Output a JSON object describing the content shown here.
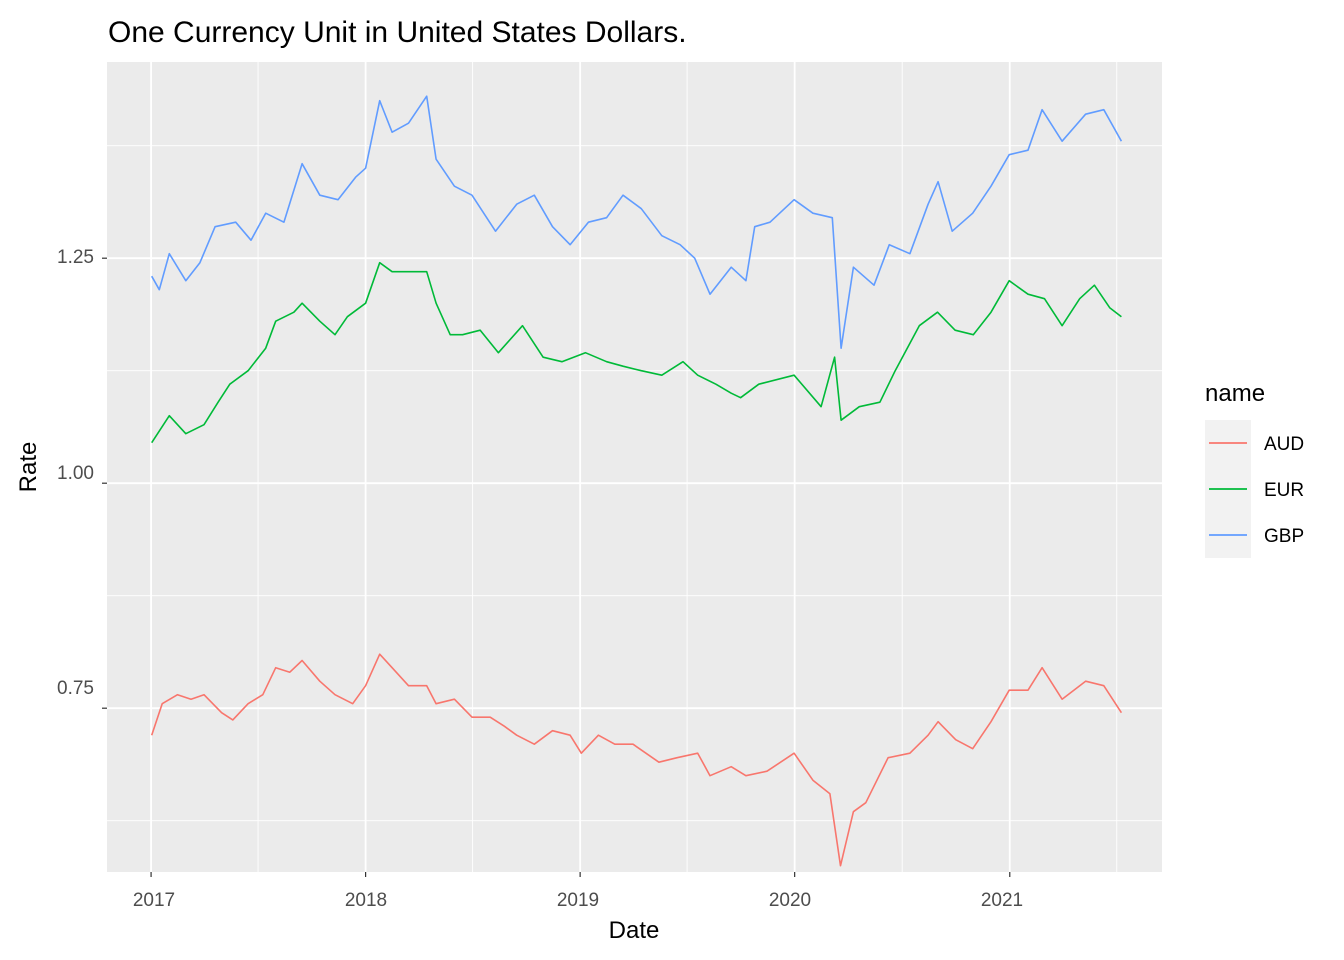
{
  "chart_data": {
    "type": "line",
    "title": "One Currency Unit in United States Dollars.",
    "xlabel": "Date",
    "ylabel": "Rate",
    "x_ticks": [
      "2017",
      "2018",
      "2019",
      "2020",
      "2021"
    ],
    "y_ticks": [
      "0.75",
      "1.00",
      "1.25"
    ],
    "xlim": [
      "2016-10-18",
      "2021-09-17"
    ],
    "ylim": [
      0.568,
      1.468
    ],
    "grid": true,
    "legend": {
      "title": "name",
      "position": "right"
    },
    "series": [
      {
        "name": "AUD",
        "color": "#F8766D",
        "points": [
          [
            "2017-01-02",
            0.72
          ],
          [
            "2017-01-20",
            0.755
          ],
          [
            "2017-02-15",
            0.765
          ],
          [
            "2017-03-10",
            0.76
          ],
          [
            "2017-04-01",
            0.765
          ],
          [
            "2017-05-01",
            0.745
          ],
          [
            "2017-05-20",
            0.737
          ],
          [
            "2017-06-15",
            0.755
          ],
          [
            "2017-07-10",
            0.765
          ],
          [
            "2017-08-01",
            0.795
          ],
          [
            "2017-08-25",
            0.79
          ],
          [
            "2017-09-15",
            0.803
          ],
          [
            "2017-10-15",
            0.78
          ],
          [
            "2017-11-10",
            0.765
          ],
          [
            "2017-12-10",
            0.755
          ],
          [
            "2018-01-01",
            0.775
          ],
          [
            "2018-01-25",
            0.81
          ],
          [
            "2018-02-15",
            0.795
          ],
          [
            "2018-03-15",
            0.775
          ],
          [
            "2018-04-15",
            0.775
          ],
          [
            "2018-05-01",
            0.755
          ],
          [
            "2018-06-01",
            0.76
          ],
          [
            "2018-07-01",
            0.74
          ],
          [
            "2018-08-01",
            0.74
          ],
          [
            "2018-08-25",
            0.73
          ],
          [
            "2018-09-15",
            0.72
          ],
          [
            "2018-10-15",
            0.71
          ],
          [
            "2018-11-15",
            0.725
          ],
          [
            "2018-12-15",
            0.72
          ],
          [
            "2019-01-03",
            0.7
          ],
          [
            "2019-02-01",
            0.72
          ],
          [
            "2019-03-01",
            0.71
          ],
          [
            "2019-04-01",
            0.71
          ],
          [
            "2019-05-15",
            0.69
          ],
          [
            "2019-06-15",
            0.695
          ],
          [
            "2019-07-20",
            0.7
          ],
          [
            "2019-08-10",
            0.675
          ],
          [
            "2019-09-15",
            0.685
          ],
          [
            "2019-10-10",
            0.675
          ],
          [
            "2019-11-15",
            0.68
          ],
          [
            "2019-12-31",
            0.7
          ],
          [
            "2020-02-01",
            0.67
          ],
          [
            "2020-03-01",
            0.655
          ],
          [
            "2020-03-19",
            0.575
          ],
          [
            "2020-04-10",
            0.635
          ],
          [
            "2020-05-01",
            0.645
          ],
          [
            "2020-06-08",
            0.695
          ],
          [
            "2020-07-15",
            0.7
          ],
          [
            "2020-08-15",
            0.72
          ],
          [
            "2020-09-01",
            0.735
          ],
          [
            "2020-10-01",
            0.715
          ],
          [
            "2020-10-30",
            0.705
          ],
          [
            "2020-11-30",
            0.735
          ],
          [
            "2020-12-31",
            0.77
          ],
          [
            "2021-02-01",
            0.77
          ],
          [
            "2021-02-25",
            0.795
          ],
          [
            "2021-03-31",
            0.76
          ],
          [
            "2021-05-10",
            0.78
          ],
          [
            "2021-06-10",
            0.775
          ],
          [
            "2021-07-10",
            0.745
          ]
        ]
      },
      {
        "name": "EUR",
        "color": "#00BA38",
        "points": [
          [
            "2017-01-02",
            1.045
          ],
          [
            "2017-02-01",
            1.075
          ],
          [
            "2017-03-01",
            1.055
          ],
          [
            "2017-04-01",
            1.065
          ],
          [
            "2017-04-25",
            1.09
          ],
          [
            "2017-05-15",
            1.11
          ],
          [
            "2017-06-15",
            1.125
          ],
          [
            "2017-07-15",
            1.15
          ],
          [
            "2017-08-01",
            1.18
          ],
          [
            "2017-09-01",
            1.19
          ],
          [
            "2017-09-15",
            1.2
          ],
          [
            "2017-10-15",
            1.18
          ],
          [
            "2017-11-10",
            1.165
          ],
          [
            "2017-12-01",
            1.185
          ],
          [
            "2018-01-01",
            1.2
          ],
          [
            "2018-01-25",
            1.245
          ],
          [
            "2018-02-15",
            1.235
          ],
          [
            "2018-03-15",
            1.235
          ],
          [
            "2018-04-15",
            1.235
          ],
          [
            "2018-05-01",
            1.2
          ],
          [
            "2018-05-25",
            1.165
          ],
          [
            "2018-06-15",
            1.165
          ],
          [
            "2018-07-15",
            1.17
          ],
          [
            "2018-08-15",
            1.145
          ],
          [
            "2018-09-25",
            1.175
          ],
          [
            "2018-10-30",
            1.14
          ],
          [
            "2018-12-01",
            1.135
          ],
          [
            "2019-01-10",
            1.145
          ],
          [
            "2019-02-15",
            1.135
          ],
          [
            "2019-03-15",
            1.13
          ],
          [
            "2019-04-15",
            1.125
          ],
          [
            "2019-05-20",
            1.12
          ],
          [
            "2019-06-25",
            1.135
          ],
          [
            "2019-07-20",
            1.12
          ],
          [
            "2019-08-20",
            1.11
          ],
          [
            "2019-09-15",
            1.1
          ],
          [
            "2019-10-01",
            1.095
          ],
          [
            "2019-11-01",
            1.11
          ],
          [
            "2019-12-31",
            1.12
          ],
          [
            "2020-02-15",
            1.085
          ],
          [
            "2020-03-09",
            1.14
          ],
          [
            "2020-03-20",
            1.07
          ],
          [
            "2020-04-20",
            1.085
          ],
          [
            "2020-05-25",
            1.09
          ],
          [
            "2020-06-20",
            1.125
          ],
          [
            "2020-07-31",
            1.175
          ],
          [
            "2020-08-31",
            1.19
          ],
          [
            "2020-09-30",
            1.17
          ],
          [
            "2020-10-31",
            1.165
          ],
          [
            "2020-11-30",
            1.19
          ],
          [
            "2020-12-31",
            1.225
          ],
          [
            "2021-02-01",
            1.21
          ],
          [
            "2021-03-01",
            1.205
          ],
          [
            "2021-03-31",
            1.175
          ],
          [
            "2021-04-30",
            1.205
          ],
          [
            "2021-05-25",
            1.22
          ],
          [
            "2021-06-20",
            1.195
          ],
          [
            "2021-07-10",
            1.185
          ]
        ]
      },
      {
        "name": "GBP",
        "color": "#619CFF",
        "points": [
          [
            "2017-01-02",
            1.23
          ],
          [
            "2017-01-15",
            1.215
          ],
          [
            "2017-02-01",
            1.255
          ],
          [
            "2017-03-01",
            1.225
          ],
          [
            "2017-03-25",
            1.245
          ],
          [
            "2017-04-20",
            1.285
          ],
          [
            "2017-05-25",
            1.29
          ],
          [
            "2017-06-20",
            1.27
          ],
          [
            "2017-07-15",
            1.3
          ],
          [
            "2017-08-15",
            1.29
          ],
          [
            "2017-09-15",
            1.355
          ],
          [
            "2017-10-15",
            1.32
          ],
          [
            "2017-11-15",
            1.315
          ],
          [
            "2017-12-15",
            1.34
          ],
          [
            "2018-01-01",
            1.35
          ],
          [
            "2018-01-25",
            1.425
          ],
          [
            "2018-02-15",
            1.39
          ],
          [
            "2018-03-15",
            1.4
          ],
          [
            "2018-04-15",
            1.43
          ],
          [
            "2018-05-01",
            1.36
          ],
          [
            "2018-06-01",
            1.33
          ],
          [
            "2018-07-01",
            1.32
          ],
          [
            "2018-08-10",
            1.28
          ],
          [
            "2018-09-15",
            1.31
          ],
          [
            "2018-10-15",
            1.32
          ],
          [
            "2018-11-15",
            1.285
          ],
          [
            "2018-12-15",
            1.265
          ],
          [
            "2019-01-15",
            1.29
          ],
          [
            "2019-02-15",
            1.295
          ],
          [
            "2019-03-15",
            1.32
          ],
          [
            "2019-04-15",
            1.305
          ],
          [
            "2019-05-20",
            1.275
          ],
          [
            "2019-06-20",
            1.265
          ],
          [
            "2019-07-15",
            1.25
          ],
          [
            "2019-08-10",
            1.21
          ],
          [
            "2019-09-15",
            1.24
          ],
          [
            "2019-10-10",
            1.225
          ],
          [
            "2019-10-25",
            1.285
          ],
          [
            "2019-11-20",
            1.29
          ],
          [
            "2019-12-31",
            1.315
          ],
          [
            "2020-02-01",
            1.3
          ],
          [
            "2020-03-05",
            1.295
          ],
          [
            "2020-03-20",
            1.15
          ],
          [
            "2020-04-10",
            1.24
          ],
          [
            "2020-05-15",
            1.22
          ],
          [
            "2020-06-10",
            1.265
          ],
          [
            "2020-07-15",
            1.255
          ],
          [
            "2020-08-15",
            1.31
          ],
          [
            "2020-09-01",
            1.335
          ],
          [
            "2020-09-25",
            1.28
          ],
          [
            "2020-10-30",
            1.3
          ],
          [
            "2020-11-30",
            1.33
          ],
          [
            "2020-12-31",
            1.365
          ],
          [
            "2021-02-01",
            1.37
          ],
          [
            "2021-02-25",
            1.415
          ],
          [
            "2021-03-31",
            1.38
          ],
          [
            "2021-05-10",
            1.41
          ],
          [
            "2021-06-10",
            1.415
          ],
          [
            "2021-07-10",
            1.38
          ]
        ]
      }
    ]
  }
}
